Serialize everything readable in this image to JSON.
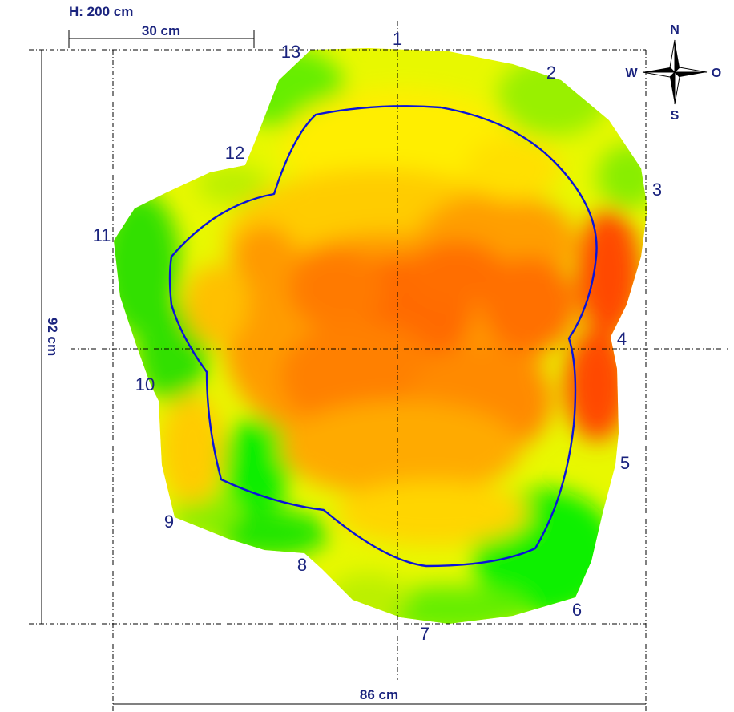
{
  "header_label": "H: 200 cm",
  "scale_bar_label": "30 cm",
  "height_dimension": "92 cm",
  "width_dimension": "86 cm",
  "compass": {
    "north": "N",
    "south": "S",
    "west": "W",
    "east": "O"
  },
  "measurement_points": [
    "1",
    "2",
    "3",
    "4",
    "5",
    "6",
    "7",
    "8",
    "9",
    "10",
    "11",
    "12",
    "13"
  ],
  "colors": {
    "outline": "#0a14d8",
    "ink": "#1a237e",
    "heat_low": "#22ee00",
    "heat_mid": "#ffff00",
    "heat_high": "#ff3300"
  }
}
